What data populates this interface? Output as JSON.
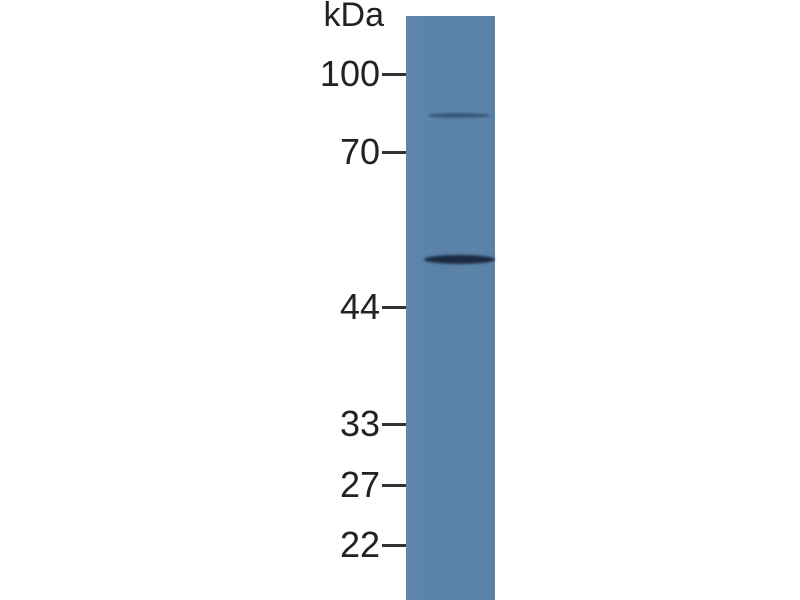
{
  "blot": {
    "unit_label": "kDa",
    "markers": [
      {
        "label": "100",
        "kda": 100
      },
      {
        "label": "70",
        "kda": 70
      },
      {
        "label": "44",
        "kda": 44
      },
      {
        "label": "33",
        "kda": 33
      },
      {
        "label": "27",
        "kda": 27
      },
      {
        "label": "22",
        "kda": 22
      }
    ],
    "lane_color": "#5a82a8",
    "band_color": "#1a2a40",
    "bands": [
      {
        "kda": 80,
        "intensity": "weak"
      },
      {
        "kda": 54,
        "intensity": "strong"
      }
    ]
  }
}
